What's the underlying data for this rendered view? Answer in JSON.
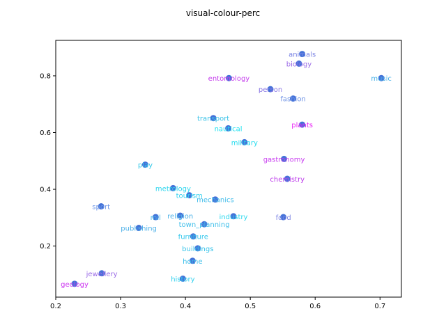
{
  "chart_data": {
    "type": "scatter",
    "title": "visual-colour-perc",
    "xlabel": "",
    "ylabel": "",
    "xlim": [
      0.2,
      0.733
    ],
    "ylim": [
      0.02,
      0.925
    ],
    "xticks": [
      0.2,
      0.3,
      0.4,
      0.5,
      0.6,
      0.7
    ],
    "yticks": [
      0.2,
      0.4,
      0.6,
      0.8
    ],
    "xtick_labels": [
      "0.2",
      "0.3",
      "0.4",
      "0.5",
      "0.6",
      "0.7"
    ],
    "ytick_labels": [
      "0.2",
      "0.4",
      "0.6",
      "0.8"
    ],
    "grid": false,
    "marker_color": "#4472d8",
    "points": [
      {
        "label": "animals",
        "x": 0.58,
        "y": 0.877,
        "color": "#7b84e4"
      },
      {
        "label": "biology",
        "x": 0.575,
        "y": 0.843,
        "color": "#9b6ae6"
      },
      {
        "label": "entomology",
        "x": 0.467,
        "y": 0.792,
        "color": "#c43cec"
      },
      {
        "label": "music",
        "x": 0.702,
        "y": 0.792,
        "color": "#4db3e8"
      },
      {
        "label": "person",
        "x": 0.531,
        "y": 0.753,
        "color": "#8b78e4"
      },
      {
        "label": "fashion",
        "x": 0.566,
        "y": 0.72,
        "color": "#6f93e5"
      },
      {
        "label": "transport",
        "x": 0.443,
        "y": 0.651,
        "color": "#3cc3e8"
      },
      {
        "label": "plants",
        "x": 0.58,
        "y": 0.628,
        "color": "#e81ef4"
      },
      {
        "label": "nautical",
        "x": 0.466,
        "y": 0.615,
        "color": "#1ee2f0"
      },
      {
        "label": "military",
        "x": 0.491,
        "y": 0.566,
        "color": "#24dcee"
      },
      {
        "label": "gastronomy",
        "x": 0.552,
        "y": 0.507,
        "color": "#c83af0"
      },
      {
        "label": "play",
        "x": 0.338,
        "y": 0.487,
        "color": "#36c9e8"
      },
      {
        "label": "chemistry",
        "x": 0.557,
        "y": 0.437,
        "color": "#bf40ec"
      },
      {
        "label": "metrology",
        "x": 0.381,
        "y": 0.404,
        "color": "#2ed6ee"
      },
      {
        "label": "tourism",
        "x": 0.406,
        "y": 0.379,
        "color": "#30d0ee"
      },
      {
        "label": "mechanics",
        "x": 0.446,
        "y": 0.364,
        "color": "#40bcea"
      },
      {
        "label": "sport",
        "x": 0.27,
        "y": 0.34,
        "color": "#6e96e6"
      },
      {
        "label": "religion",
        "x": 0.392,
        "y": 0.307,
        "color": "#4cb2e8"
      },
      {
        "label": "industry",
        "x": 0.474,
        "y": 0.305,
        "color": "#2ad8ee"
      },
      {
        "label": "food",
        "x": 0.551,
        "y": 0.302,
        "color": "#7e86e4"
      },
      {
        "label": "mil",
        "x": 0.354,
        "y": 0.302,
        "color": "#48b8ea"
      },
      {
        "label": "town_planning",
        "x": 0.429,
        "y": 0.277,
        "color": "#40bfea"
      },
      {
        "label": "publishing",
        "x": 0.328,
        "y": 0.264,
        "color": "#4cb0e8"
      },
      {
        "label": "furniture",
        "x": 0.412,
        "y": 0.234,
        "color": "#36c8ec"
      },
      {
        "label": "buildings",
        "x": 0.419,
        "y": 0.192,
        "color": "#38c4ea"
      },
      {
        "label": "home",
        "x": 0.411,
        "y": 0.148,
        "color": "#3cbfea"
      },
      {
        "label": "jewellery",
        "x": 0.271,
        "y": 0.104,
        "color": "#9a6ae6"
      },
      {
        "label": "history",
        "x": 0.396,
        "y": 0.085,
        "color": "#2ed0ee"
      },
      {
        "label": "geology",
        "x": 0.229,
        "y": 0.067,
        "color": "#cc34f0"
      }
    ]
  }
}
